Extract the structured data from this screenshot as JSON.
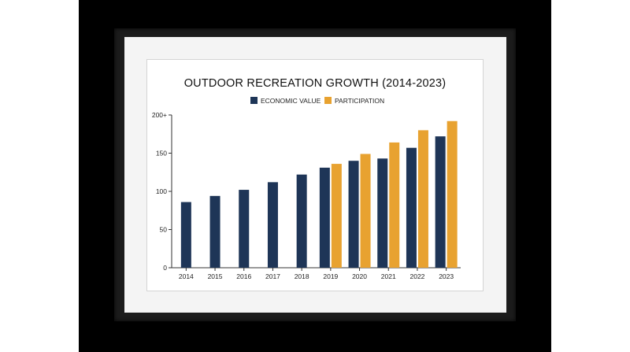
{
  "chart_data": {
    "type": "bar",
    "title": "OUTDOOR RECREATION GROWTH (2014-2023)",
    "categories": [
      "2014",
      "2015",
      "2016",
      "2017",
      "2018",
      "2019",
      "2020",
      "2021",
      "2022",
      "2023"
    ],
    "series": [
      {
        "name": "ECONOMIC VALUE",
        "color": "#1e3557",
        "values": [
          86,
          94,
          102,
          112,
          122,
          131,
          140,
          143,
          157,
          172
        ]
      },
      {
        "name": "PARTICIPATION",
        "color": "#e8a230",
        "values": [
          null,
          null,
          null,
          null,
          null,
          136,
          149,
          164,
          180,
          192
        ]
      }
    ],
    "y_ticks": [
      {
        "value": 0,
        "label": "0"
      },
      {
        "value": 50,
        "label": "50"
      },
      {
        "value": 100,
        "label": "100"
      },
      {
        "value": 150,
        "label": "150"
      },
      {
        "value": 200,
        "label": "200+"
      }
    ],
    "ylim": [
      0,
      200
    ],
    "xlabel": "",
    "ylabel": "",
    "grid": false,
    "legend_position": "top-center"
  }
}
